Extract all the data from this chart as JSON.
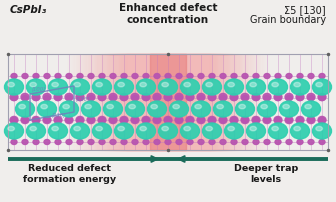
{
  "bg_color": "#f0eeec",
  "title_left": "CsPbI₃",
  "title_right_line1": "Σ5 [130]",
  "title_right_line2": "Grain boundary",
  "label_top": "Enhanced defect\nconcentration",
  "label_bottom_left": "Reduced defect\nformation energy",
  "label_bottom_right": "Deeper trap\nlevels",
  "highlight_color_outer": "#f5b8b8",
  "highlight_color_inner": "#e88080",
  "teal_line_color": "#1a6b5a",
  "arrow_color": "#1a6b5a",
  "cs_color": "#2ecfaf",
  "cs_dark": "#1aaa90",
  "pb_color": "#b855b0",
  "i_color": "#aa44a8",
  "bond_color": "#c078c0",
  "bond_gray": "#a0a0b8",
  "box_color": "#7080bb",
  "box_line_color": "#9090cc",
  "slab_border": "#a0a0b0",
  "dot_color": "#606060",
  "text_color": "#1a1a1a"
}
